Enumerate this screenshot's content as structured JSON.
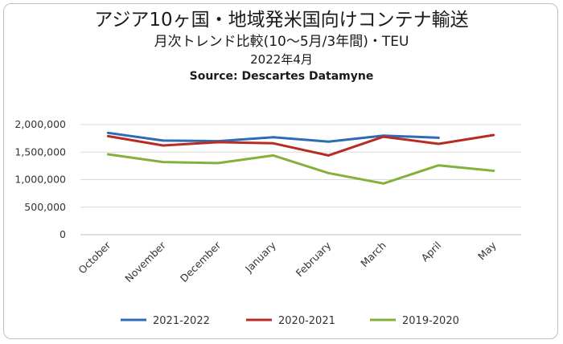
{
  "chart_data": {
    "type": "line",
    "title": "アジア10ヶ国・地域発米国向けコンテナ輸送",
    "subtitle": "月次トレンド比較(10～5月/3年間)・TEU",
    "date_label": "2022年4月",
    "source": "Source: Descartes Datamyne",
    "categories": [
      "October",
      "November",
      "December",
      "January",
      "February",
      "March",
      "April",
      "May"
    ],
    "ylim": [
      0,
      2000000
    ],
    "yticks": [
      {
        "value": 0,
        "label": "0"
      },
      {
        "value": 500000,
        "label": "500,000"
      },
      {
        "value": 1000000,
        "label": "1,000,000"
      },
      {
        "value": 1500000,
        "label": "1,500,000"
      },
      {
        "value": 2000000,
        "label": "2,000,000"
      }
    ],
    "grid": true,
    "legend_position": "bottom",
    "series": [
      {
        "name": "2021-2022",
        "color": "#2e6bb5",
        "values": [
          1850000,
          1710000,
          1700000,
          1770000,
          1690000,
          1800000,
          1760000,
          null
        ]
      },
      {
        "name": "2020-2021",
        "color": "#b82b25",
        "values": [
          1790000,
          1620000,
          1680000,
          1660000,
          1440000,
          1780000,
          1650000,
          1810000
        ]
      },
      {
        "name": "2019-2020",
        "color": "#84b13a",
        "values": [
          1460000,
          1320000,
          1300000,
          1440000,
          1120000,
          930000,
          1260000,
          1160000
        ]
      }
    ]
  }
}
